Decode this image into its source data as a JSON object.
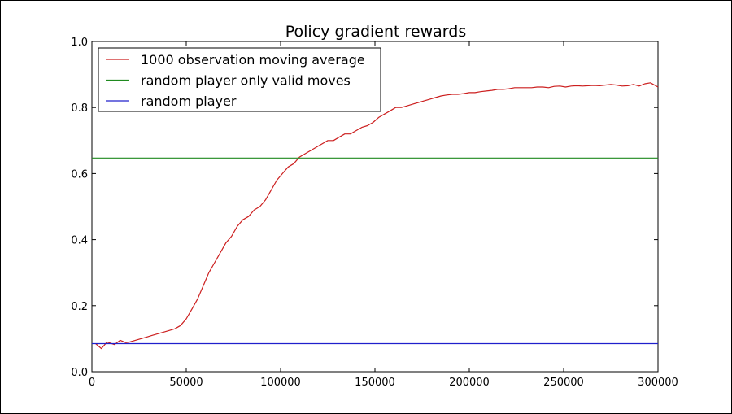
{
  "chart_data": {
    "type": "line",
    "title": "Policy gradient rewards",
    "xlabel": "",
    "ylabel": "",
    "xlim": [
      0,
      300000
    ],
    "ylim": [
      0.0,
      1.0
    ],
    "grid": false,
    "legend_position": "top-left",
    "x_ticks": [
      "0",
      "50000",
      "100000",
      "150000",
      "200000",
      "250000",
      "300000"
    ],
    "x_tick_values": [
      0,
      50000,
      100000,
      150000,
      200000,
      250000,
      300000
    ],
    "y_ticks": [
      "0.0",
      "0.2",
      "0.4",
      "0.6",
      "0.8",
      "1.0"
    ],
    "y_tick_values": [
      0.0,
      0.2,
      0.4,
      0.6,
      0.8,
      1.0
    ],
    "series": [
      {
        "name": "1000 observation moving average",
        "color": "#cc1f1f",
        "x": [
          2000,
          5000,
          8000,
          12000,
          15000,
          18000,
          20000,
          23000,
          26000,
          29000,
          32000,
          35000,
          38000,
          41000,
          44000,
          47000,
          50000,
          53000,
          56000,
          59000,
          62000,
          65000,
          68000,
          71000,
          74000,
          77000,
          80000,
          83000,
          86000,
          89000,
          92000,
          95000,
          98000,
          101000,
          104000,
          107000,
          110000,
          113000,
          116000,
          119000,
          122000,
          125000,
          128000,
          131000,
          134000,
          137000,
          140000,
          143000,
          146000,
          149000,
          152000,
          155000,
          158000,
          161000,
          164000,
          167000,
          170000,
          173000,
          176000,
          179000,
          182000,
          185000,
          188000,
          191000,
          194000,
          197000,
          200000,
          203000,
          206000,
          209000,
          212000,
          215000,
          218000,
          221000,
          224000,
          227000,
          230000,
          233000,
          236000,
          239000,
          242000,
          245000,
          248000,
          251000,
          254000,
          257000,
          260000,
          263000,
          266000,
          269000,
          272000,
          275000,
          278000,
          281000,
          284000,
          287000,
          290000,
          293000,
          296000,
          300000
        ],
        "y": [
          0.085,
          0.07,
          0.09,
          0.082,
          0.095,
          0.088,
          0.09,
          0.095,
          0.1,
          0.105,
          0.11,
          0.115,
          0.12,
          0.125,
          0.13,
          0.14,
          0.16,
          0.19,
          0.22,
          0.26,
          0.3,
          0.33,
          0.36,
          0.39,
          0.41,
          0.44,
          0.46,
          0.47,
          0.49,
          0.5,
          0.52,
          0.55,
          0.58,
          0.6,
          0.62,
          0.63,
          0.65,
          0.66,
          0.67,
          0.68,
          0.69,
          0.7,
          0.7,
          0.71,
          0.72,
          0.72,
          0.73,
          0.74,
          0.745,
          0.755,
          0.77,
          0.78,
          0.79,
          0.8,
          0.8,
          0.805,
          0.81,
          0.815,
          0.82,
          0.825,
          0.83,
          0.835,
          0.838,
          0.84,
          0.84,
          0.842,
          0.845,
          0.845,
          0.848,
          0.85,
          0.852,
          0.855,
          0.855,
          0.857,
          0.86,
          0.86,
          0.86,
          0.86,
          0.862,
          0.862,
          0.86,
          0.864,
          0.865,
          0.862,
          0.865,
          0.866,
          0.865,
          0.866,
          0.867,
          0.866,
          0.868,
          0.87,
          0.868,
          0.865,
          0.866,
          0.87,
          0.865,
          0.872,
          0.875,
          0.862
        ]
      },
      {
        "name": "random player only valid moves",
        "color": "#1f8a1f",
        "x": [
          0,
          300000
        ],
        "y": [
          0.647,
          0.647
        ]
      },
      {
        "name": "random player",
        "color": "#2020cc",
        "x": [
          0,
          300000
        ],
        "y": [
          0.085,
          0.085
        ]
      }
    ]
  }
}
